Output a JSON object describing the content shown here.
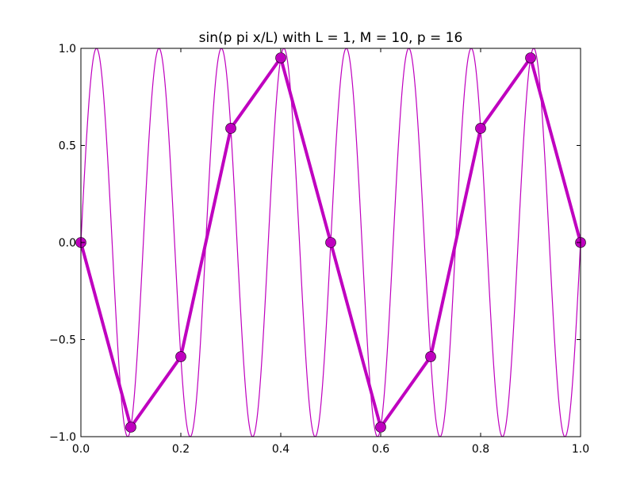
{
  "chart_data": {
    "type": "line",
    "title": "sin(p pi x/L) with L = 1, M = 10, p = 16",
    "xlabel": "",
    "ylabel": "",
    "xlim": [
      0.0,
      1.0
    ],
    "ylim": [
      -1.0,
      1.0
    ],
    "x_ticks": [
      0.0,
      0.2,
      0.4,
      0.6,
      0.8,
      1.0
    ],
    "x_tick_labels": [
      "0.0",
      "0.2",
      "0.4",
      "0.6",
      "0.8",
      "1.0"
    ],
    "y_ticks": [
      -1.0,
      -0.5,
      0.0,
      0.5,
      1.0
    ],
    "y_tick_labels": [
      "−1.0",
      "−0.5",
      "0.0",
      "0.5",
      "1.0"
    ],
    "grid": false,
    "legend": "none",
    "color": "#bf00bf",
    "series": [
      {
        "kind": "continuous-curve",
        "function": "sin(16*pi*x)",
        "x_range": [
          0.0,
          1.0
        ]
      },
      {
        "kind": "sampled-points",
        "x": [
          0.0,
          0.1,
          0.2,
          0.3,
          0.4,
          0.5,
          0.6,
          0.7,
          0.8,
          0.9,
          1.0
        ],
        "y": [
          0.0,
          -0.951,
          -0.588,
          0.588,
          0.951,
          0.0,
          -0.951,
          -0.588,
          0.588,
          0.951,
          0.0
        ],
        "marker": "circle"
      }
    ]
  }
}
